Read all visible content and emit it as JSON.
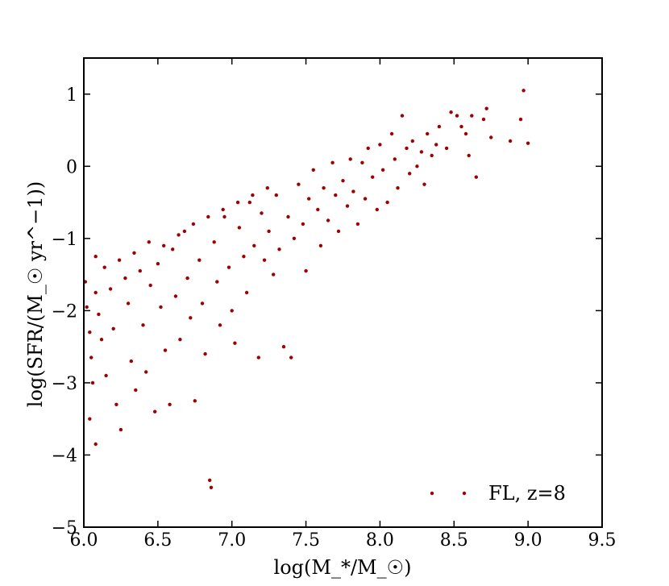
{
  "chart_data": {
    "type": "scatter",
    "title": "",
    "xlabel": "log(M_*/M_☉)",
    "ylabel": "log(SFR/(M_☉ yr^−1))",
    "xlim": [
      6.0,
      9.5
    ],
    "ylim": [
      -5,
      1.5
    ],
    "xticks": [
      6.0,
      6.5,
      7.0,
      7.5,
      8.0,
      8.5,
      9.0,
      9.5
    ],
    "xtick_labels": [
      "6.0",
      "6.5",
      "7.0",
      "7.5",
      "8.0",
      "8.5",
      "9.0",
      "9.5"
    ],
    "yticks": [
      -5,
      -4,
      -3,
      -2,
      -1,
      0,
      1
    ],
    "ytick_labels": [
      "−5",
      "−4",
      "−3",
      "−2",
      "−1",
      "0",
      "1"
    ],
    "grid": false,
    "legend_position": "bottom-right",
    "colors": {
      "marker": "#a00000",
      "axes": "#000000"
    },
    "series": [
      {
        "name": "FL, z=8",
        "points": [
          [
            6.01,
            -1.6
          ],
          [
            6.02,
            -1.95
          ],
          [
            6.04,
            -2.3
          ],
          [
            6.05,
            -2.65
          ],
          [
            6.06,
            -3.0
          ],
          [
            6.04,
            -3.5
          ],
          [
            6.08,
            -1.75
          ],
          [
            6.1,
            -2.05
          ],
          [
            6.12,
            -2.4
          ],
          [
            6.15,
            -2.9
          ],
          [
            6.08,
            -3.85
          ],
          [
            6.18,
            -1.7
          ],
          [
            6.2,
            -2.25
          ],
          [
            6.22,
            -3.3
          ],
          [
            6.25,
            -3.65
          ],
          [
            6.28,
            -1.55
          ],
          [
            6.3,
            -1.9
          ],
          [
            6.32,
            -2.7
          ],
          [
            6.35,
            -3.1
          ],
          [
            6.38,
            -1.45
          ],
          [
            6.4,
            -2.2
          ],
          [
            6.42,
            -2.85
          ],
          [
            6.45,
            -1.65
          ],
          [
            6.48,
            -3.4
          ],
          [
            6.5,
            -1.35
          ],
          [
            6.52,
            -1.95
          ],
          [
            6.55,
            -2.55
          ],
          [
            6.58,
            -3.3
          ],
          [
            6.6,
            -1.15
          ],
          [
            6.62,
            -1.8
          ],
          [
            6.65,
            -2.4
          ],
          [
            6.68,
            -0.9
          ],
          [
            6.7,
            -1.55
          ],
          [
            6.72,
            -2.1
          ],
          [
            6.75,
            -3.25
          ],
          [
            6.78,
            -1.3
          ],
          [
            6.8,
            -1.9
          ],
          [
            6.82,
            -2.6
          ],
          [
            6.85,
            -4.35
          ],
          [
            6.86,
            -4.45
          ],
          [
            6.88,
            -1.05
          ],
          [
            6.9,
            -1.6
          ],
          [
            6.92,
            -2.2
          ],
          [
            6.95,
            -0.7
          ],
          [
            6.98,
            -1.4
          ],
          [
            7.0,
            -2.0
          ],
          [
            7.02,
            -2.45
          ],
          [
            7.05,
            -0.85
          ],
          [
            7.08,
            -1.25
          ],
          [
            7.1,
            -1.75
          ],
          [
            7.12,
            -0.5
          ],
          [
            7.15,
            -1.1
          ],
          [
            7.18,
            -2.65
          ],
          [
            7.2,
            -0.65
          ],
          [
            7.22,
            -1.3
          ],
          [
            7.25,
            -0.9
          ],
          [
            7.28,
            -1.5
          ],
          [
            7.3,
            -0.4
          ],
          [
            7.32,
            -1.15
          ],
          [
            7.35,
            -2.5
          ],
          [
            7.38,
            -0.7
          ],
          [
            7.4,
            -2.65
          ],
          [
            7.42,
            -1.0
          ],
          [
            7.45,
            -0.25
          ],
          [
            7.48,
            -0.8
          ],
          [
            7.5,
            -1.45
          ],
          [
            7.52,
            -0.45
          ],
          [
            7.55,
            -0.05
          ],
          [
            7.58,
            -0.6
          ],
          [
            7.6,
            -1.1
          ],
          [
            7.62,
            -0.3
          ],
          [
            7.65,
            -0.75
          ],
          [
            7.68,
            0.05
          ],
          [
            7.7,
            -0.4
          ],
          [
            7.72,
            -0.9
          ],
          [
            7.75,
            -0.2
          ],
          [
            7.78,
            -0.55
          ],
          [
            7.8,
            0.1
          ],
          [
            7.82,
            -0.35
          ],
          [
            7.85,
            -0.8
          ],
          [
            7.88,
            0.05
          ],
          [
            7.9,
            -0.45
          ],
          [
            7.92,
            0.25
          ],
          [
            7.95,
            -0.15
          ],
          [
            7.98,
            -0.6
          ],
          [
            8.0,
            0.3
          ],
          [
            8.02,
            -0.05
          ],
          [
            8.05,
            -0.5
          ],
          [
            8.08,
            0.45
          ],
          [
            8.1,
            0.1
          ],
          [
            8.12,
            -0.3
          ],
          [
            8.15,
            0.7
          ],
          [
            8.18,
            0.25
          ],
          [
            8.2,
            -0.1
          ],
          [
            8.22,
            0.35
          ],
          [
            8.25,
            0.0
          ],
          [
            8.28,
            0.2
          ],
          [
            8.3,
            -0.25
          ],
          [
            8.32,
            0.45
          ],
          [
            8.35,
            0.15
          ],
          [
            8.38,
            0.3
          ],
          [
            8.4,
            0.55
          ],
          [
            8.45,
            0.25
          ],
          [
            8.48,
            0.75
          ],
          [
            8.52,
            0.7
          ],
          [
            8.55,
            0.55
          ],
          [
            8.58,
            0.45
          ],
          [
            8.6,
            0.15
          ],
          [
            8.62,
            0.7
          ],
          [
            8.65,
            -0.15
          ],
          [
            8.7,
            0.65
          ],
          [
            8.72,
            0.8
          ],
          [
            8.75,
            0.4
          ],
          [
            8.88,
            0.35
          ],
          [
            8.95,
            0.65
          ],
          [
            8.97,
            1.05
          ],
          [
            9.0,
            0.32
          ],
          [
            6.08,
            -1.25
          ],
          [
            6.14,
            -1.4
          ],
          [
            6.24,
            -1.3
          ],
          [
            6.34,
            -1.2
          ],
          [
            6.44,
            -1.05
          ],
          [
            6.54,
            -1.1
          ],
          [
            6.64,
            -0.95
          ],
          [
            6.74,
            -0.8
          ],
          [
            6.84,
            -0.7
          ],
          [
            6.94,
            -0.6
          ],
          [
            7.04,
            -0.5
          ],
          [
            7.14,
            -0.4
          ],
          [
            7.24,
            -0.3
          ]
        ]
      }
    ]
  }
}
